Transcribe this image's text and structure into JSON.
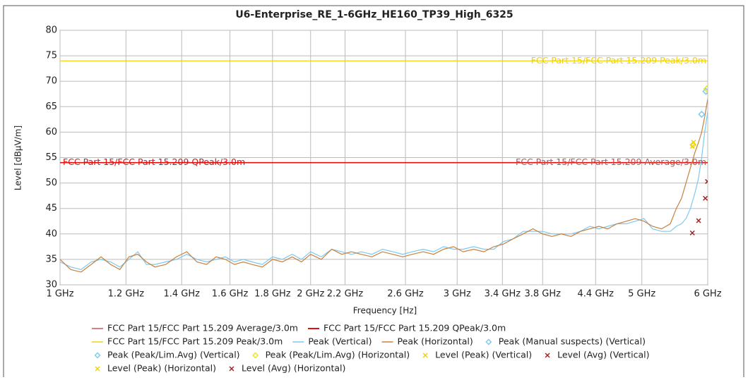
{
  "chart_data": {
    "type": "line",
    "title": "U6-Enterprise_RE_1-6GHz_HE160_TP39_High_6325",
    "x_label": "Frequency [Hz]",
    "y_label": "Level [dBµV/m]",
    "xscale": "log",
    "grid": true,
    "xlim": [
      1000000000,
      6000000000
    ],
    "ylim": [
      30,
      80
    ],
    "xticks": [
      {
        "value": 1000000000,
        "label": "1 GHz"
      },
      {
        "value": 1200000000,
        "label": "1.2 GHz"
      },
      {
        "value": 1400000000,
        "label": "1.4 GHz"
      },
      {
        "value": 1600000000,
        "label": "1.6 GHz"
      },
      {
        "value": 1800000000,
        "label": "1.8 GHz"
      },
      {
        "value": 2000000000,
        "label": "2 GHz"
      },
      {
        "value": 2200000000,
        "label": "2.2 GHz"
      },
      {
        "value": 2600000000,
        "label": "2.6 GHz"
      },
      {
        "value": 3000000000,
        "label": "3 GHz"
      },
      {
        "value": 3400000000,
        "label": "3.4 GHz"
      },
      {
        "value": 3800000000,
        "label": "3.8 GHz"
      },
      {
        "value": 4400000000,
        "label": "4.4 GHz"
      },
      {
        "value": 5000000000,
        "label": "5 GHz"
      },
      {
        "value": 6000000000,
        "label": "6 GHz"
      }
    ],
    "yticks": [
      30,
      35,
      40,
      45,
      50,
      55,
      60,
      65,
      70,
      75,
      80
    ],
    "x": [
      1000000000,
      1030000000,
      1060000000,
      1090000000,
      1120000000,
      1150000000,
      1180000000,
      1210000000,
      1240000000,
      1270000000,
      1300000000,
      1340000000,
      1380000000,
      1420000000,
      1460000000,
      1500000000,
      1540000000,
      1580000000,
      1620000000,
      1660000000,
      1700000000,
      1750000000,
      1800000000,
      1850000000,
      1900000000,
      1950000000,
      2000000000,
      2060000000,
      2120000000,
      2180000000,
      2240000000,
      2300000000,
      2370000000,
      2440000000,
      2510000000,
      2580000000,
      2650000000,
      2730000000,
      2810000000,
      2890000000,
      2970000000,
      3050000000,
      3140000000,
      3230000000,
      3320000000,
      3410000000,
      3500000000,
      3600000000,
      3700000000,
      3800000000,
      3900000000,
      4000000000,
      4110000000,
      4220000000,
      4330000000,
      4440000000,
      4550000000,
      4670000000,
      4790000000,
      4910000000,
      5030000000,
      5150000000,
      5280000000,
      5410000000,
      5500000000,
      5580000000,
      5650000000,
      5720000000,
      5790000000,
      5850000000,
      5900000000,
      5950000000,
      6000000000
    ],
    "series": [
      {
        "name": "FCC Part 15/FCC Part 15.209 Average/3.0m",
        "color": "#c0504d",
        "kind": "line",
        "x": [
          1000000000,
          6000000000
        ],
        "values": [
          54,
          54
        ]
      },
      {
        "name": "FCC Part 15/FCC Part 15.209 QPeak/3.0m",
        "color": "#e01010",
        "kind": "line",
        "x": [
          1000000000,
          6000000000
        ],
        "values": [
          54,
          54
        ]
      },
      {
        "name": "FCC Part 15/FCC Part 15.209 Peak/3.0m",
        "color": "#f0d000",
        "kind": "line",
        "x": [
          1000000000,
          6000000000
        ],
        "values": [
          74,
          74
        ]
      },
      {
        "name": "Peak (Vertical)",
        "color": "#7ec8f0",
        "kind": "trace",
        "values": [
          34.5,
          33.5,
          33,
          34.5,
          35,
          34.5,
          33.5,
          35,
          36.5,
          34,
          34,
          34.5,
          35,
          36,
          35,
          34.5,
          35,
          35.5,
          34.5,
          35,
          34.5,
          34,
          35.5,
          35,
          36,
          35,
          36.5,
          35.5,
          37,
          36.5,
          36,
          36.5,
          36,
          37,
          36.5,
          36,
          36.5,
          37,
          36.5,
          37.5,
          37,
          37,
          37.5,
          37,
          37,
          38.5,
          39,
          40.5,
          40.5,
          40.5,
          40,
          40,
          40,
          40.5,
          41.5,
          41,
          41.5,
          42,
          42,
          42.5,
          43,
          41,
          40.5,
          40.5,
          41.5,
          42,
          43,
          45,
          48,
          51,
          55,
          60,
          64
        ]
      },
      {
        "name": "Peak (Horizontal)",
        "color": "#c8803c",
        "kind": "trace",
        "values": [
          35,
          33,
          32.5,
          34,
          35.5,
          34,
          33,
          35.5,
          36,
          34.5,
          33.5,
          34,
          35.5,
          36.5,
          34.5,
          34,
          35.5,
          35,
          34,
          34.5,
          34,
          33.5,
          35,
          34.5,
          35.5,
          34.5,
          36,
          35,
          37,
          36,
          36.5,
          36,
          35.5,
          36.5,
          36,
          35.5,
          36,
          36.5,
          36,
          37,
          37.5,
          36.5,
          37,
          36.5,
          37.5,
          38,
          39,
          40,
          41,
          40,
          39.5,
          40,
          39.5,
          40.5,
          41,
          41.5,
          41,
          42,
          42.5,
          43,
          42.5,
          41.5,
          41,
          42,
          45,
          47,
          50,
          53,
          56,
          58,
          60,
          63,
          66.5
        ]
      },
      {
        "name": "Peak (Manual suspects) (Vertical)",
        "color": "#7ec8f0",
        "kind": "marker",
        "marker": "diamond",
        "x": [
          5900000000
        ],
        "values": [
          63.5
        ]
      },
      {
        "name": "Peak (Peak/Lim.Avg) (Vertical)",
        "color": "#7ec8f0",
        "kind": "marker",
        "marker": "diamond",
        "x": [
          5970000000
        ],
        "values": [
          68
        ]
      },
      {
        "name": "Peak (Peak/Lim.Avg) (Horizontal)",
        "color": "#f0e020",
        "kind": "marker",
        "marker": "diamond",
        "x": [
          5760000000,
          5985000000
        ],
        "values": [
          57.5,
          68.5
        ]
      },
      {
        "name": "Level (Peak) (Vertical)",
        "color": "#f0d000",
        "kind": "marker",
        "marker": "x",
        "x": [
          5750000000
        ],
        "values": [
          57.2
        ]
      },
      {
        "name": "Level (Avg) (Vertical)",
        "color": "#a02020",
        "kind": "marker",
        "marker": "x",
        "x": [
          5750000000
        ],
        "values": [
          40.2
        ]
      },
      {
        "name": "Level (Peak) (Horizontal)",
        "color": "#f0d000",
        "kind": "marker",
        "marker": "x",
        "x": [
          5770000000
        ],
        "values": [
          58
        ]
      },
      {
        "name": "Level (Avg) (Horizontal)",
        "color": "#a02020",
        "kind": "marker",
        "marker": "x",
        "x": [
          5850000000,
          5960000000,
          5995000000
        ],
        "values": [
          42.6,
          47,
          50.3
        ]
      }
    ]
  }
}
